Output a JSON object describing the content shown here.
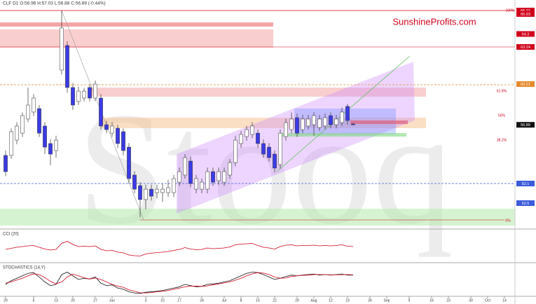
{
  "chart_data": {
    "type": "candlestick",
    "title": "CLF D1 O:56.96 H:57.03 L:56.88 C:56.89 (-0.44%)",
    "brand": "SunshineProfits.com",
    "watermark": "Stooq",
    "fib_labels": [
      "100%",
      "61.8%",
      "50%",
      "38.2%",
      "0%"
    ],
    "categories": [
      "29",
      null,
      null,
      null,
      null,
      "6",
      null,
      null,
      null,
      "13",
      null,
      null,
      "20",
      null,
      null,
      null,
      "27",
      null,
      null,
      "Jun",
      null,
      null,
      null,
      null,
      null,
      "3",
      null,
      null,
      "10",
      null,
      null,
      "17",
      null,
      null,
      null,
      "24",
      null,
      null,
      null,
      "Jul",
      null,
      null,
      "8",
      null,
      null,
      "15",
      null,
      null,
      "22",
      null,
      null,
      null,
      "29",
      null,
      null,
      "Aug",
      null,
      null,
      "12",
      null,
      null,
      "19",
      null,
      null,
      null,
      "26",
      null,
      null,
      "Sep",
      null,
      null,
      null,
      "9",
      null,
      null,
      null,
      "16",
      null,
      null,
      "23",
      null,
      null,
      null,
      "30",
      null,
      null,
      "Oct",
      null,
      null,
      "14"
    ],
    "open": [
      54.39,
      54.39,
      55.64,
      56.21,
      57.36,
      57.93,
      58.21,
      56.79,
      55.36,
      54.79,
      61.36,
      63.36,
      59.93,
      58.79,
      59.07,
      59.93,
      59.07,
      59.07,
      56.9,
      56.21,
      56.61,
      56.33,
      55.07,
      52.79,
      51.93,
      50.79,
      51.64,
      51.36,
      51.36,
      51.36,
      51.36,
      52.21,
      52.79,
      53.93,
      51.64,
      51.64,
      51.64,
      53.07,
      52.33,
      52.21,
      52.79,
      53.81,
      55.36,
      55.93,
      56.1,
      56.21,
      55.36,
      55.07,
      54.5,
      53.64,
      55.93,
      56.5,
      57.47,
      56.5,
      56.79,
      56.9,
      56.67,
      56.79,
      57.64,
      56.9,
      57.07,
      58.39,
      56.96,
      null,
      null,
      null,
      null,
      null,
      null,
      null,
      null,
      null,
      null,
      null,
      null,
      null,
      null,
      null,
      null,
      null,
      null,
      null,
      null,
      null,
      null,
      null,
      null,
      null,
      null,
      null
    ],
    "high": [
      54.8,
      56.6,
      57.1,
      57.9,
      59.93,
      59.4,
      58.5,
      57.1,
      55.7,
      56.0,
      66.21,
      63.7,
      60.3,
      60.0,
      59.9,
      60.2,
      60.5,
      59.4,
      57.2,
      57.1,
      56.9,
      56.6,
      55.4,
      53.1,
      52.2,
      52.0,
      52.0,
      52.0,
      52.1,
      52.4,
      52.8,
      53.4,
      54.5,
      54.3,
      52.8,
      52.5,
      53.4,
      53.4,
      53.4,
      53.4,
      54.1,
      56.0,
      56.4,
      56.8,
      57.1,
      56.5,
      55.7,
      55.4,
      54.8,
      56.5,
      57.4,
      57.9,
      57.8,
      57.7,
      57.7,
      57.9,
      57.7,
      57.8,
      57.9,
      57.7,
      58.3,
      58.6,
      57.03,
      null,
      null,
      null,
      null,
      null,
      null,
      null,
      null,
      null,
      null,
      null,
      null,
      null,
      null,
      null,
      null,
      null,
      null,
      null,
      null,
      null,
      null,
      null,
      null,
      null,
      null,
      null
    ],
    "low": [
      52.7,
      54.1,
      55.3,
      55.9,
      57.1,
      57.6,
      55.9,
      54.5,
      53.6,
      54.2,
      61.0,
      59.5,
      58.1,
      58.5,
      58.8,
      58.8,
      58.8,
      56.5,
      56.2,
      55.9,
      55.0,
      54.4,
      52.1,
      51.3,
      49.36,
      50.0,
      50.7,
      50.9,
      50.6,
      51.0,
      51.0,
      51.9,
      52.5,
      51.8,
      51.3,
      51.3,
      51.3,
      51.9,
      52.0,
      51.9,
      52.5,
      53.5,
      55.0,
      55.6,
      55.8,
      55.0,
      54.2,
      53.9,
      53.0,
      53.3,
      55.6,
      56.2,
      55.9,
      56.2,
      56.5,
      56.0,
      56.4,
      56.5,
      56.6,
      56.6,
      56.8,
      56.9,
      56.88,
      null,
      null,
      null,
      null,
      null,
      null,
      null,
      null,
      null,
      null,
      null,
      null,
      null,
      null,
      null,
      null,
      null,
      null,
      null,
      null,
      null,
      null,
      null,
      null,
      null,
      null,
      null
    ],
    "close": [
      53.07,
      56.33,
      56.79,
      57.64,
      58.5,
      59.07,
      56.21,
      55.07,
      54.5,
      55.64,
      64.79,
      59.93,
      58.5,
      59.64,
      59.64,
      59.07,
      60.21,
      56.79,
      56.5,
      56.79,
      55.36,
      54.79,
      52.5,
      51.64,
      50.79,
      51.64,
      51.07,
      51.64,
      51.64,
      51.76,
      52.5,
      53.07,
      54.21,
      52.1,
      52.5,
      52.21,
      53.07,
      52.21,
      53.07,
      53.07,
      53.81,
      55.64,
      56.1,
      56.5,
      56.79,
      55.36,
      54.5,
      54.21,
      53.36,
      56.21,
      57.07,
      57.36,
      56.21,
      57.36,
      57.36,
      57.64,
      57.36,
      57.47,
      56.9,
      57.36,
      57.93,
      57.24,
      56.89,
      null,
      null,
      null,
      null,
      null,
      null,
      null,
      null,
      null,
      null,
      null,
      null,
      null,
      null,
      null,
      null,
      null,
      null,
      null,
      null,
      null,
      null,
      null,
      null,
      null,
      null,
      null
    ],
    "up_color": "#ffffff",
    "down_color": "#3b3be6",
    "ylim": [
      48.5,
      66.5
    ],
    "yticks": [
      66.21,
      65.93,
      64.3,
      63.24,
      60.21,
      56.89,
      52.1,
      50.5
    ],
    "ytick_colors": [
      "#d0021b",
      "#d0021b",
      "#d0021b",
      "#d0021b",
      "#e58a2c",
      "#111111",
      "#3b5bdb",
      "#3b5bdb"
    ],
    "indicators": [
      {
        "title": "CCI (20)",
        "ylim": [
          -300,
          300
        ],
        "series": [
          {
            "name": "CCI",
            "color": "#d0021b",
            "values": [
              -20,
              10,
              40,
              60,
              80,
              90,
              40,
              -10,
              -40,
              -20,
              150,
              210,
              120,
              60,
              70,
              60,
              80,
              -20,
              -60,
              -50,
              -100,
              -120,
              -180,
              -200,
              -210,
              -150,
              -130,
              -110,
              -100,
              -80,
              -50,
              -20,
              30,
              -10,
              -30,
              -20,
              20,
              0,
              10,
              20,
              50,
              110,
              130,
              140,
              150,
              90,
              40,
              20,
              -10,
              60,
              100,
              110,
              80,
              90,
              90,
              100,
              80,
              90,
              80,
              90,
              110,
              70,
              60,
              null,
              null,
              null,
              null,
              null,
              null,
              null,
              null,
              null,
              null,
              null,
              null,
              null,
              null,
              null,
              null,
              null,
              null,
              null,
              null,
              null,
              null,
              null,
              null,
              null,
              null,
              null
            ]
          }
        ]
      },
      {
        "title": "STOCHASTICS (14,Y)",
        "ylim": [
          0,
          100
        ],
        "series": [
          {
            "name": "%K",
            "color": "#111111",
            "values": [
              40,
              55,
              65,
              75,
              85,
              88,
              70,
              50,
              35,
              40,
              80,
              90,
              75,
              60,
              65,
              62,
              70,
              45,
              35,
              38,
              25,
              20,
              10,
              5,
              3,
              8,
              10,
              12,
              15,
              20,
              25,
              30,
              40,
              35,
              30,
              32,
              40,
              42,
              45,
              50,
              55,
              65,
              75,
              85,
              90,
              88,
              80,
              70,
              60,
              65,
              72,
              78,
              75,
              78,
              80,
              82,
              78,
              80,
              78,
              80,
              82,
              78,
              78,
              null,
              null,
              null,
              null,
              null,
              null,
              null,
              null,
              null,
              null,
              null,
              null,
              null,
              null,
              null,
              null,
              null,
              null,
              null,
              null,
              null,
              null,
              null,
              null,
              null,
              null,
              null
            ]
          },
          {
            "name": "%D",
            "color": "#d0021b",
            "values": [
              45,
              50,
              58,
              65,
              75,
              83,
              80,
              68,
              52,
              42,
              50,
              70,
              82,
              75,
              67,
              62,
              66,
              60,
              50,
              40,
              33,
              28,
              18,
              12,
              6,
              5,
              7,
              10,
              12,
              15,
              20,
              25,
              30,
              33,
              33,
              32,
              34,
              38,
              42,
              46,
              50,
              57,
              65,
              75,
              83,
              88,
              86,
              80,
              70,
              65,
              66,
              72,
              75,
              77,
              78,
              80,
              80,
              80,
              79,
              79,
              80,
              80,
              79,
              null,
              null,
              null,
              null,
              null,
              null,
              null,
              null,
              null,
              null,
              null,
              null,
              null,
              null,
              null,
              null,
              null,
              null,
              null,
              null,
              null,
              null,
              null,
              null,
              null,
              null,
              null
            ]
          }
        ]
      }
    ]
  }
}
